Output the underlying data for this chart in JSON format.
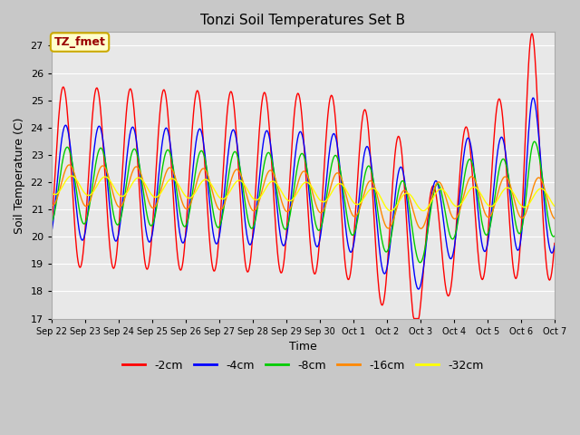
{
  "title": "Tonzi Soil Temperatures Set B",
  "xlabel": "Time",
  "ylabel": "Soil Temperature (C)",
  "ylim": [
    17.0,
    27.5
  ],
  "yticks": [
    17.0,
    18.0,
    19.0,
    20.0,
    21.0,
    22.0,
    23.0,
    24.0,
    25.0,
    26.0,
    27.0
  ],
  "annotation_text": "TZ_fmet",
  "annotation_bg": "#ffffcc",
  "annotation_border": "#ccaa00",
  "series_colors": [
    "#ff0000",
    "#0000ff",
    "#00cc00",
    "#ff8800",
    "#ffff00"
  ],
  "series_labels": [
    "-2cm",
    "-4cm",
    "-8cm",
    "-16cm",
    "-32cm"
  ],
  "fig_bg_color": "#c8c8c8",
  "plot_bg_color": "#e8e8e8",
  "tick_labels": [
    "Sep 22",
    "Sep 23",
    "Sep 24",
    "Sep 25",
    "Sep 26",
    "Sep 27",
    "Sep 28",
    "Sep 29",
    "Sep 30",
    "Oct 1",
    "Oct 2",
    "Oct 3",
    "Oct 4",
    "Oct 5",
    "Oct 6",
    "Oct 7"
  ],
  "n_days": 15,
  "n_points": 720
}
